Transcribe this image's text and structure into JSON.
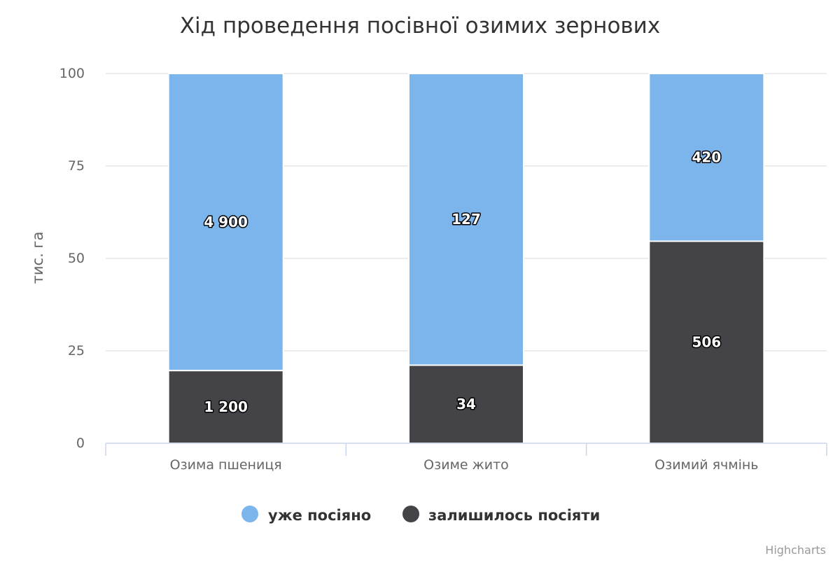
{
  "chart_data": {
    "type": "bar",
    "stacking": "percent",
    "title": "Хід проведення посівної озимих зернових",
    "ylabel": "тис. га",
    "ylim": [
      0,
      100
    ],
    "yticks": [
      "0",
      "25",
      "50",
      "75",
      "100"
    ],
    "categories": [
      "Озима пшениця",
      "Озиме жито",
      "Озимий ячмінь"
    ],
    "series": [
      {
        "name": "уже посіяно",
        "color": "#7cb5ec",
        "values": [
          4900,
          127,
          420
        ],
        "labels": [
          "4 900",
          "127",
          "420"
        ]
      },
      {
        "name": "залишилось посіяти",
        "color": "#434348",
        "values": [
          1200,
          34,
          506
        ],
        "labels": [
          "1 200",
          "34",
          "506"
        ]
      }
    ],
    "legend_position": "bottom",
    "grid": true
  },
  "credits": "Highcharts"
}
